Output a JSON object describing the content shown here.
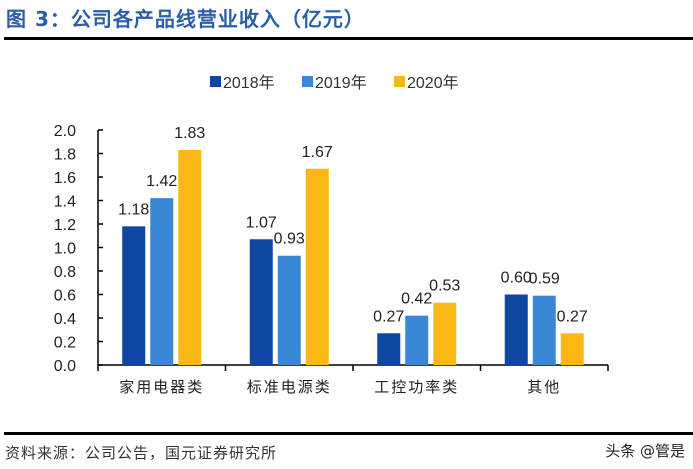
{
  "title": "图 3：公司各产品线营业收入（亿元）",
  "source": "资料来源：公司公告，国元证券研究所",
  "watermark": "头条 @管是",
  "chart_data": {
    "type": "bar",
    "categories": [
      "家用电器类",
      "标准电源类",
      "工控功率类",
      "其他"
    ],
    "series": [
      {
        "name": "2018年",
        "values": [
          1.18,
          1.07,
          0.27,
          0.6
        ],
        "labels": [
          "1.18",
          "1.07",
          "0.27",
          "0.60"
        ],
        "color": "#0d47a1"
      },
      {
        "name": "2019年",
        "values": [
          1.42,
          0.93,
          0.42,
          0.59
        ],
        "labels": [
          "1.42",
          "0.93",
          "0.42",
          "0.59"
        ],
        "color": "#3a87d6"
      },
      {
        "name": "2020年",
        "values": [
          1.83,
          1.67,
          0.53,
          0.27
        ],
        "labels": [
          "1.83",
          "1.67",
          "0.53",
          "0.27"
        ],
        "color": "#fbb814"
      }
    ],
    "yticks": [
      "0.0",
      "0.2",
      "0.4",
      "0.6",
      "0.8",
      "1.0",
      "1.2",
      "1.4",
      "1.6",
      "1.8",
      "2.0"
    ],
    "ylim": [
      0,
      2.0
    ],
    "xlabel": "",
    "ylabel": "",
    "grid": false,
    "legend": "top-center"
  }
}
